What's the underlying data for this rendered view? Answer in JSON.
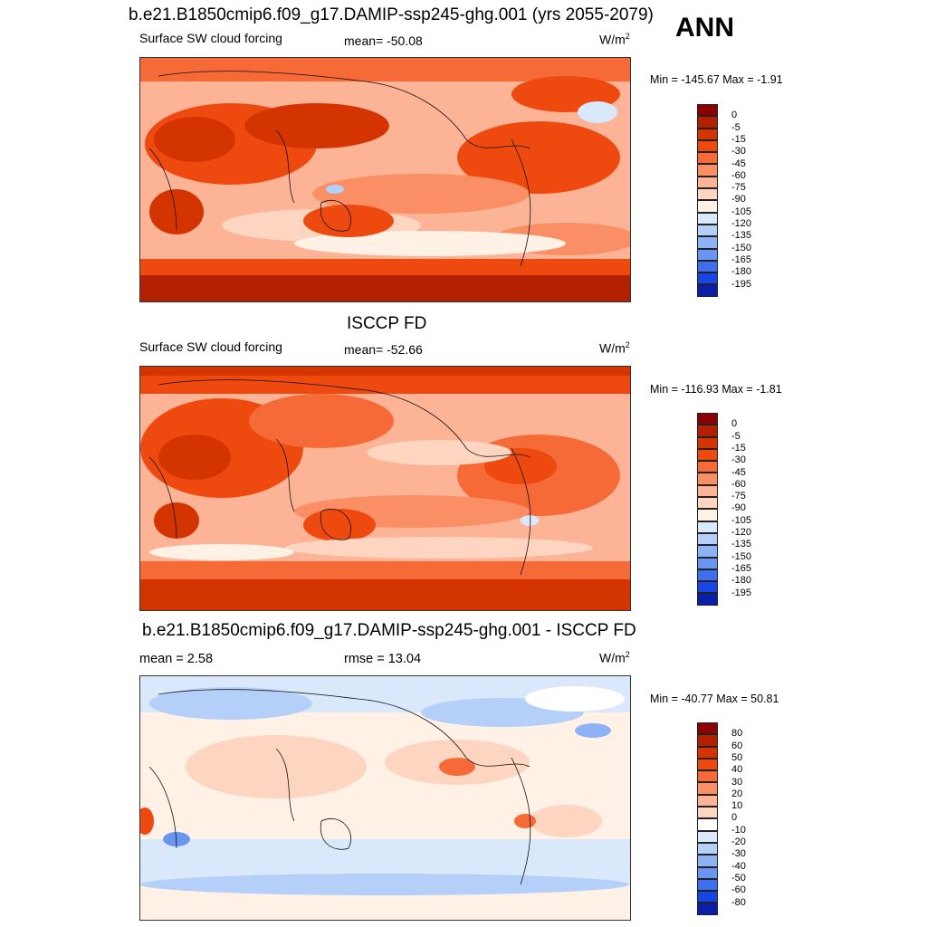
{
  "season": "ANN",
  "units_base": "W/m",
  "units_exp": "2",
  "panels": [
    {
      "title": "b.e21.B1850cmip6.f09_g17.DAMIP-ssp245-ghg.001 (yrs 2055-2079)",
      "left_label": "Surface SW cloud forcing",
      "mid_label": "mean= -50.08",
      "minmax": "Min = -145.67 Max =  -1.91"
    },
    {
      "title": "ISCCP FD",
      "left_label": "Surface SW cloud forcing",
      "mid_label": "mean= -52.66",
      "minmax": "Min = -116.93 Max =  -1.81"
    },
    {
      "title": "b.e21.B1850cmip6.f09_g17.DAMIP-ssp245-ghg.001 - ISCCP FD",
      "left_label": "mean =   2.58",
      "mid_label": "rmse =  13.04",
      "minmax": "Min = -40.77 Max =  50.81"
    }
  ],
  "colorbar_main": {
    "labels": [
      "0",
      "-5",
      "-15",
      "-30",
      "-45",
      "-60",
      "-75",
      "-90",
      "-105",
      "-120",
      "-135",
      "-150",
      "-165",
      "-180",
      "-195"
    ],
    "colors": [
      "#8b0000",
      "#b22000",
      "#d43500",
      "#ee4a10",
      "#f66a38",
      "#fa8f66",
      "#fcb396",
      "#fdd5c0",
      "#fff1e6",
      "#d9e8fb",
      "#b5d0f8",
      "#8db2f5",
      "#6a96f2",
      "#3d6ff0",
      "#1846e6",
      "#0a1fa8"
    ]
  },
  "colorbar_diff": {
    "labels": [
      "80",
      "60",
      "50",
      "40",
      "30",
      "20",
      "10",
      "0",
      "-10",
      "-20",
      "-30",
      "-40",
      "-50",
      "-60",
      "-80"
    ],
    "colors": [
      "#8b0000",
      "#b22000",
      "#d43500",
      "#ee4a10",
      "#f66a38",
      "#fa8f66",
      "#fcb396",
      "#fdd5c0",
      "#ffffff",
      "#d9e8fb",
      "#b5d0f8",
      "#8db2f5",
      "#6a96f2",
      "#3d6ff0",
      "#1846e6",
      "#0a1fa8"
    ]
  }
}
